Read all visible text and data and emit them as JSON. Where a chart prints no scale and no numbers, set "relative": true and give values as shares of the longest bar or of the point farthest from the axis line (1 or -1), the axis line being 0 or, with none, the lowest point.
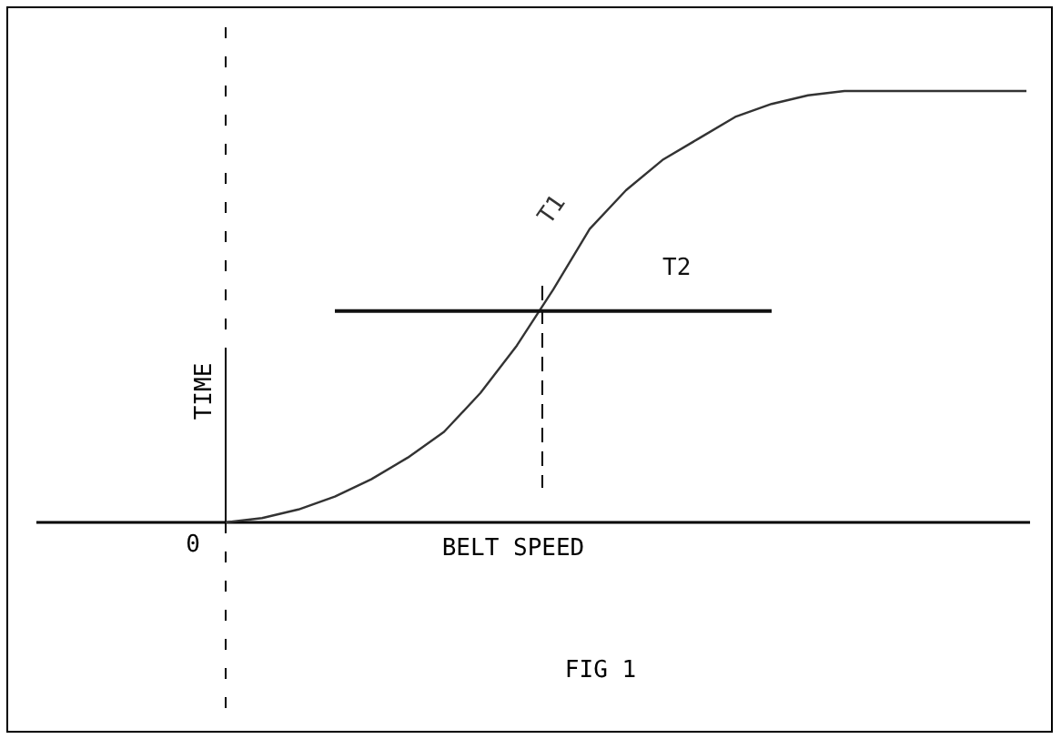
{
  "chart_data": {
    "type": "line",
    "relative": true,
    "xlabel": "BELT SPEED",
    "ylabel": "TIME",
    "categories": [
      null,
      null,
      null,
      null,
      null,
      null,
      null,
      null,
      null,
      null,
      null,
      null,
      null,
      null,
      null,
      null,
      null,
      null,
      null,
      null,
      null,
      null,
      null
    ],
    "series": [
      {
        "name": "T1",
        "color": "#333333",
        "values": [
          0,
          0.01,
          0.03,
          0.06,
          0.1,
          0.15,
          0.21,
          0.3,
          0.41,
          0.54,
          0.68,
          0.77,
          0.84,
          0.89,
          0.94,
          0.97,
          0.99,
          1,
          1,
          1,
          1,
          1,
          1
        ]
      },
      {
        "name": "T2",
        "color": "#111111",
        "values": [
          null,
          null,
          null,
          0.49,
          0.49,
          0.49,
          0.49,
          0.49,
          0.49,
          0.49,
          0.49,
          0.49,
          0.49,
          0.49,
          0.49,
          0.49,
          null,
          null,
          null,
          null,
          null,
          null,
          null
        ]
      }
    ],
    "annotations": [
      "0",
      "FIG 1"
    ],
    "line_style": "solid"
  }
}
